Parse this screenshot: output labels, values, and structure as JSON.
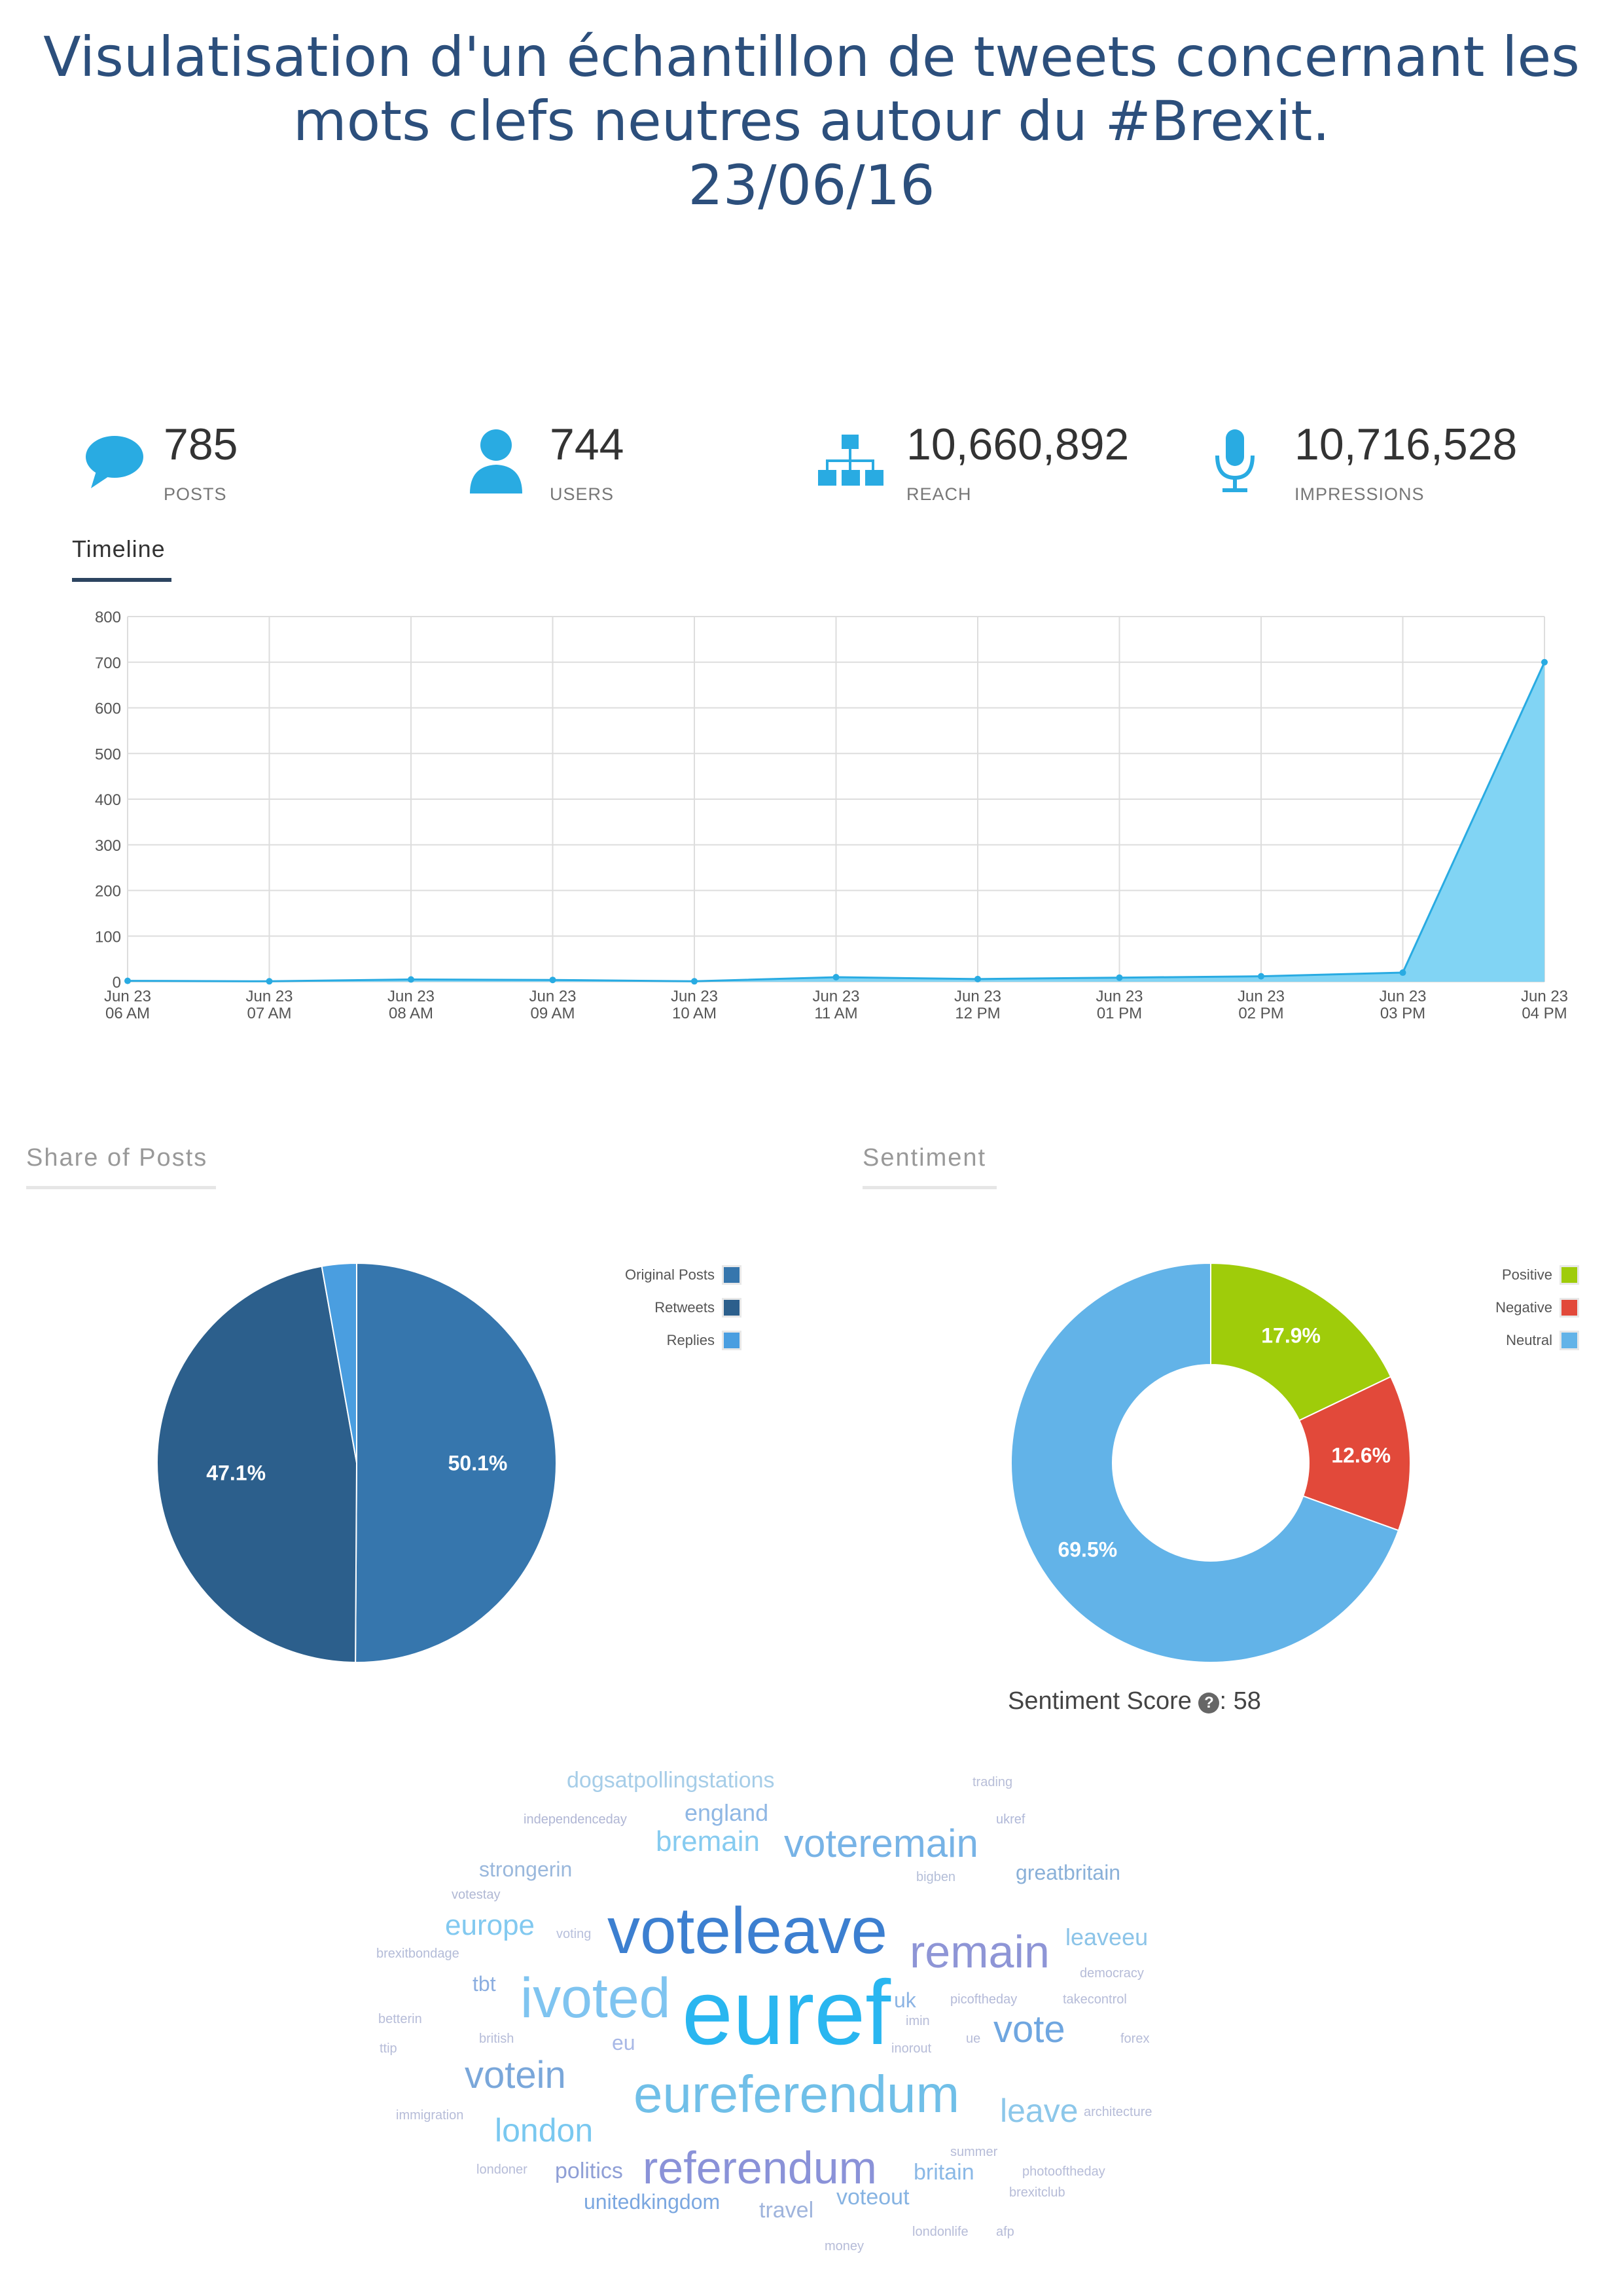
{
  "title": {
    "line1": "Visulatisation d'un échantillon de tweets concernant les",
    "line2": "mots clefs neutres autour du #Brexit.",
    "line3": "23/06/16"
  },
  "stats": [
    {
      "icon": "speech-bubble-icon",
      "value": "785",
      "label": "POSTS"
    },
    {
      "icon": "user-icon",
      "value": "744",
      "label": "USERS"
    },
    {
      "icon": "hierarchy-icon",
      "value": "10,660,892",
      "label": "REACH"
    },
    {
      "icon": "microphone-icon",
      "value": "10,716,528",
      "label": "IMPRESSIONS"
    }
  ],
  "timeline": {
    "tab_label": "Timeline"
  },
  "share": {
    "heading": "Share of Posts"
  },
  "sentiment": {
    "heading": "Sentiment",
    "score_label": "Sentiment Score",
    "score_sep": ":",
    "score_value": "58"
  },
  "colors": {
    "title": "#2c4f7c",
    "accent": "#29abe2",
    "area": "#81d4f4",
    "original": "#3676ad",
    "retweets": "#2c5f8c",
    "replies": "#4a9ee0",
    "positive": "#9fcc0a",
    "negative": "#e2493a",
    "neutral": "#62b3e8"
  },
  "chart_data": [
    {
      "type": "area",
      "x": [
        "Jun 23 06 AM",
        "Jun 23 07 AM",
        "Jun 23 08 AM",
        "Jun 23 09 AM",
        "Jun 23 10 AM",
        "Jun 23 11 AM",
        "Jun 23 12 PM",
        "Jun 23 01 PM",
        "Jun 23 02 PM",
        "Jun 23 03 PM",
        "Jun 23 04 PM"
      ],
      "x_lines": [
        [
          "Jun 23",
          "06 AM"
        ],
        [
          "Jun 23",
          "07 AM"
        ],
        [
          "Jun 23",
          "08 AM"
        ],
        [
          "Jun 23",
          "09 AM"
        ],
        [
          "Jun 23",
          "10 AM"
        ],
        [
          "Jun 23",
          "11 AM"
        ],
        [
          "Jun 23",
          "12 PM"
        ],
        [
          "Jun 23",
          "01 PM"
        ],
        [
          "Jun 23",
          "02 PM"
        ],
        [
          "Jun 23",
          "03 PM"
        ],
        [
          "Jun 23",
          "04 PM"
        ]
      ],
      "values": [
        2,
        1,
        5,
        4,
        1,
        10,
        6,
        9,
        12,
        20,
        700
      ],
      "ylim": [
        0,
        800
      ],
      "yticks": [
        0,
        100,
        200,
        300,
        400,
        500,
        600,
        700,
        800
      ],
      "grid": true,
      "title": "",
      "xlabel": "",
      "ylabel": ""
    },
    {
      "type": "pie",
      "labels": [
        "Original Posts",
        "Retweets",
        "Replies"
      ],
      "values": [
        50.1,
        47.1,
        2.8
      ],
      "data_labels": [
        "50.1%",
        "47.1%",
        ""
      ],
      "colors": [
        "#3676ad",
        "#2c5f8c",
        "#4a9ee0"
      ],
      "legend": "top-right"
    },
    {
      "type": "pie",
      "donut": true,
      "labels": [
        "Positive",
        "Negative",
        "Neutral"
      ],
      "values": [
        17.9,
        12.6,
        69.5
      ],
      "data_labels": [
        "17.9%",
        "12.6%",
        "69.5%"
      ],
      "colors": [
        "#9fcc0a",
        "#e2493a",
        "#62b3e8"
      ],
      "legend": "top-right"
    }
  ],
  "word_cloud": [
    {
      "text": "euref",
      "size": 140,
      "color": "#29b6f0"
    },
    {
      "text": "voteleave",
      "size": 100,
      "color": "#3c7fd0"
    },
    {
      "text": "ivoted",
      "size": 86,
      "color": "#7fc4f0"
    },
    {
      "text": "eureferendum",
      "size": 80,
      "color": "#70bfe8"
    },
    {
      "text": "remain",
      "size": 70,
      "color": "#8e95d6"
    },
    {
      "text": "referendum",
      "size": 70,
      "color": "#8a92d8"
    },
    {
      "text": "voteremain",
      "size": 60,
      "color": "#77b3e6"
    },
    {
      "text": "votein",
      "size": 58,
      "color": "#7aa7da"
    },
    {
      "text": "vote",
      "size": 58,
      "color": "#6fa6e0"
    },
    {
      "text": "london",
      "size": 50,
      "color": "#79c8f0"
    },
    {
      "text": "leave",
      "size": 50,
      "color": "#8cc7ea"
    },
    {
      "text": "europe",
      "size": 44,
      "color": "#82c9f0"
    },
    {
      "text": "bremain",
      "size": 44,
      "color": "#86cbf0"
    },
    {
      "text": "leaveeu",
      "size": 36,
      "color": "#8cc4e8"
    },
    {
      "text": "england",
      "size": 36,
      "color": "#8fb7e4"
    },
    {
      "text": "dogsatpollingstations",
      "size": 34,
      "color": "#a6cde8"
    },
    {
      "text": "greatbritain",
      "size": 32,
      "color": "#8ab0d8"
    },
    {
      "text": "strongerin",
      "size": 32,
      "color": "#9ab8dc"
    },
    {
      "text": "politics",
      "size": 34,
      "color": "#8f9fd6"
    },
    {
      "text": "britain",
      "size": 34,
      "color": "#8ab8e6"
    },
    {
      "text": "travel",
      "size": 34,
      "color": "#9fb4dc"
    },
    {
      "text": "voteout",
      "size": 34,
      "color": "#86b3e2"
    },
    {
      "text": "unitedkingdom",
      "size": 32,
      "color": "#7ba7e0"
    },
    {
      "text": "eu",
      "size": 32,
      "color": "#a8b8e6"
    },
    {
      "text": "tbt",
      "size": 32,
      "color": "#8caee0"
    },
    {
      "text": "uk",
      "size": 32,
      "color": "#8cb4e4"
    },
    {
      "text": "independenceday",
      "size": 20,
      "color": "#b0b6d4"
    },
    {
      "text": "trading",
      "size": 20,
      "color": "#b8bed8"
    },
    {
      "text": "ukref",
      "size": 20,
      "color": "#b0b8d8"
    },
    {
      "text": "bigben",
      "size": 20,
      "color": "#b4bed8"
    },
    {
      "text": "votestay",
      "size": 20,
      "color": "#b0b8d4"
    },
    {
      "text": "voting",
      "size": 20,
      "color": "#b8c0dc"
    },
    {
      "text": "brexitbondage",
      "size": 20,
      "color": "#b4bcd8"
    },
    {
      "text": "democracy",
      "size": 20,
      "color": "#b6bcd8"
    },
    {
      "text": "picoftheday",
      "size": 20,
      "color": "#b4bad8"
    },
    {
      "text": "takecontrol",
      "size": 20,
      "color": "#b6bcd8"
    },
    {
      "text": "betterin",
      "size": 20,
      "color": "#b6bcd8"
    },
    {
      "text": "british",
      "size": 20,
      "color": "#b6bcd8"
    },
    {
      "text": "imin",
      "size": 20,
      "color": "#b6bcd8"
    },
    {
      "text": "ttip",
      "size": 20,
      "color": "#b6bcd8"
    },
    {
      "text": "inorout",
      "size": 20,
      "color": "#b6bcd8"
    },
    {
      "text": "ue",
      "size": 20,
      "color": "#b6bcd8"
    },
    {
      "text": "forex",
      "size": 20,
      "color": "#b6bcd8"
    },
    {
      "text": "immigration",
      "size": 20,
      "color": "#b6bcd8"
    },
    {
      "text": "architecture",
      "size": 20,
      "color": "#b6bcd8"
    },
    {
      "text": "summer",
      "size": 20,
      "color": "#b6bcd8"
    },
    {
      "text": "londoner",
      "size": 20,
      "color": "#b6bcd8"
    },
    {
      "text": "photooftheday",
      "size": 20,
      "color": "#b6bcd8"
    },
    {
      "text": "brexitclub",
      "size": 20,
      "color": "#b6bcd8"
    },
    {
      "text": "money",
      "size": 20,
      "color": "#b6bcd8"
    },
    {
      "text": "londonlife",
      "size": 20,
      "color": "#b6bcd8"
    },
    {
      "text": "afp",
      "size": 20,
      "color": "#b6bcd8"
    }
  ]
}
